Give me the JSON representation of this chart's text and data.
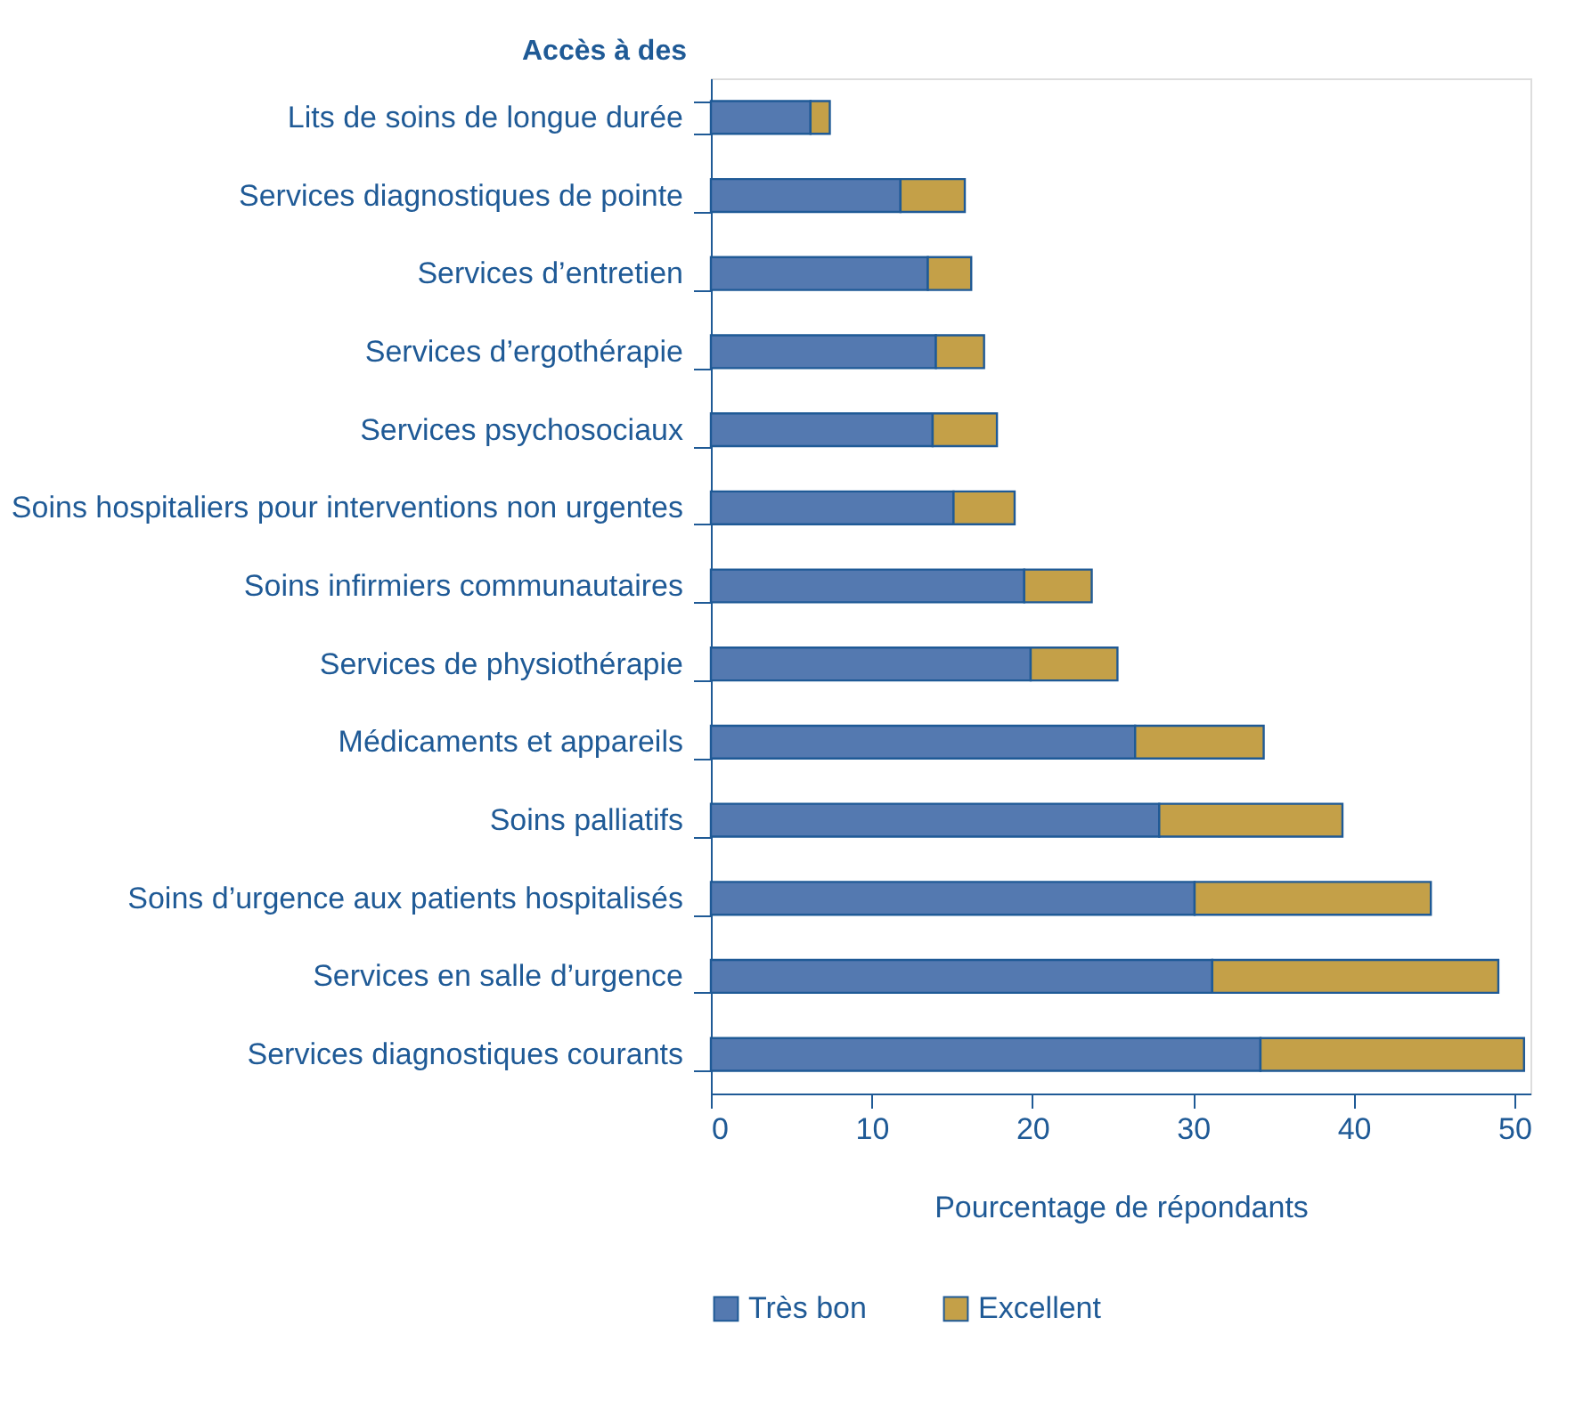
{
  "chart_data": {
    "type": "bar",
    "orientation": "horizontal",
    "stacked": true,
    "ylabel": "Accès à des",
    "xlabel": "Pourcentage de répondants",
    "categories": [
      "Lits de soins de longue durée",
      "Services diagnostiques de pointe",
      "Services d’entretien",
      "Services d’ergothérapie",
      "Services psychosociaux",
      "Soins hospitaliers pour interventions non urgentes",
      "Soins infirmiers communautaires",
      "Services de physiothérapie",
      "Médicaments et appareils",
      "Soins palliatifs",
      "Soins d’urgence aux patients hospitalisés",
      "Services en salle d’urgence",
      "Services diagnostiques courants"
    ],
    "series": [
      {
        "name": "Très bon",
        "color": "#5479b0",
        "values": [
          6.2,
          11.8,
          13.5,
          14.0,
          13.8,
          15.1,
          19.5,
          19.9,
          26.4,
          27.9,
          30.1,
          31.2,
          34.2
        ]
      },
      {
        "name": "Excellent",
        "color": "#c4a048",
        "values": [
          1.2,
          4.0,
          2.7,
          3.0,
          4.0,
          3.8,
          4.2,
          5.4,
          8.0,
          11.4,
          14.7,
          17.8,
          16.4
        ]
      }
    ],
    "xlim": [
      0,
      51
    ],
    "xticks": [
      0,
      10,
      20,
      30,
      40,
      50
    ],
    "grid": false,
    "legend": "bottom"
  }
}
